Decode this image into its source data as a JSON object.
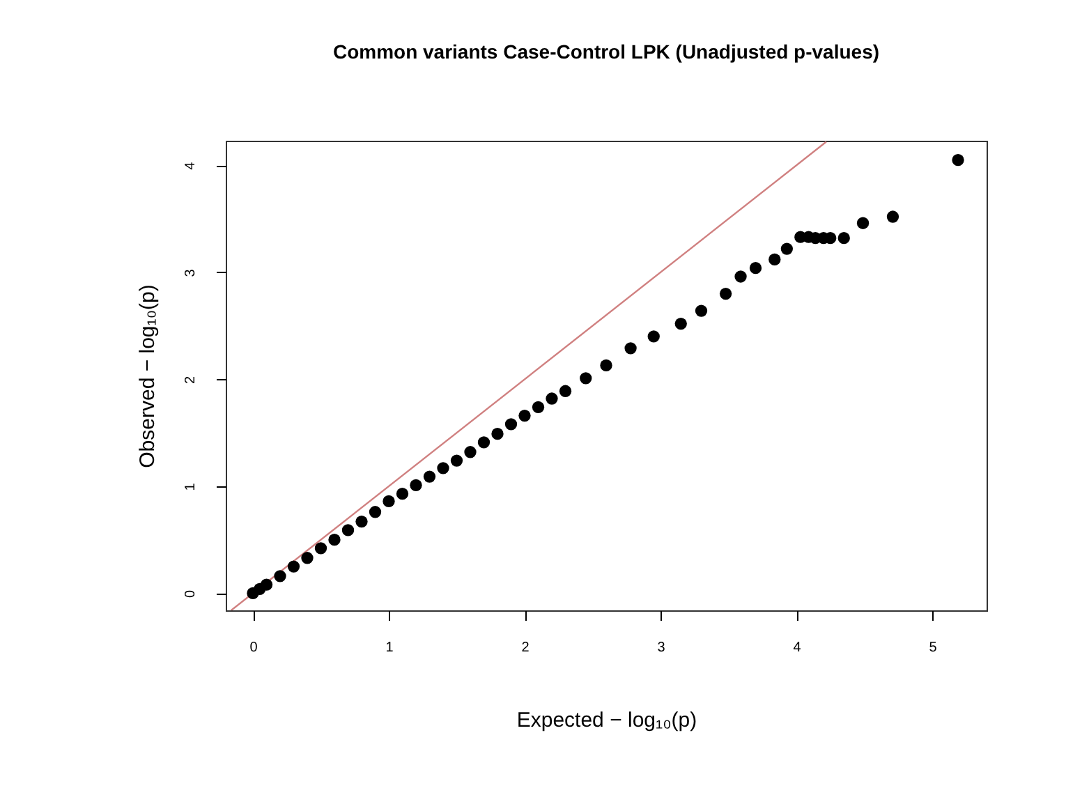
{
  "chart_data": {
    "type": "scatter",
    "title": "Common variants Case-Control LPK (Unadjusted p-values)",
    "xlabel": "Expected  − log₁₀(p)",
    "ylabel": "Observed  − log₁₀(p)",
    "xlim": [
      -0.2,
      5.4
    ],
    "ylim": [
      -0.16,
      4.23
    ],
    "xticks": [
      0,
      1,
      2,
      3,
      4,
      5
    ],
    "yticks": [
      0,
      1,
      2,
      3,
      4
    ],
    "marker": "circle",
    "series": [
      {
        "type": "line",
        "marker": "none",
        "color": "#d08080",
        "x": [
          -0.16,
          4.22
        ],
        "values": [
          -0.16,
          4.22
        ]
      },
      {
        "color": "#000000",
        "x": [
          0,
          0.05,
          0.1,
          0.2,
          0.3,
          0.4,
          0.5,
          0.6,
          0.7,
          0.8,
          0.9,
          1.0,
          1.1,
          1.2,
          1.3,
          1.4,
          1.5,
          1.6,
          1.7,
          1.8,
          1.9,
          2.0,
          2.1,
          2.2,
          2.3,
          2.45,
          2.6,
          2.78,
          2.95,
          3.15,
          3.3,
          3.48,
          3.59,
          3.7,
          3.84,
          3.93,
          4.03,
          4.09,
          4.14,
          4.2,
          4.25,
          4.35,
          4.49,
          4.71,
          5.19
        ],
        "values": [
          0,
          0.04,
          0.08,
          0.16,
          0.25,
          0.33,
          0.42,
          0.5,
          0.59,
          0.67,
          0.76,
          0.86,
          0.93,
          1.01,
          1.09,
          1.17,
          1.24,
          1.32,
          1.41,
          1.49,
          1.58,
          1.66,
          1.74,
          1.82,
          1.89,
          2.01,
          2.13,
          2.29,
          2.4,
          2.52,
          2.64,
          2.8,
          2.96,
          3.04,
          3.12,
          3.22,
          3.33,
          3.33,
          3.32,
          3.32,
          3.32,
          3.32,
          3.46,
          3.52,
          4.05
        ]
      }
    ]
  }
}
